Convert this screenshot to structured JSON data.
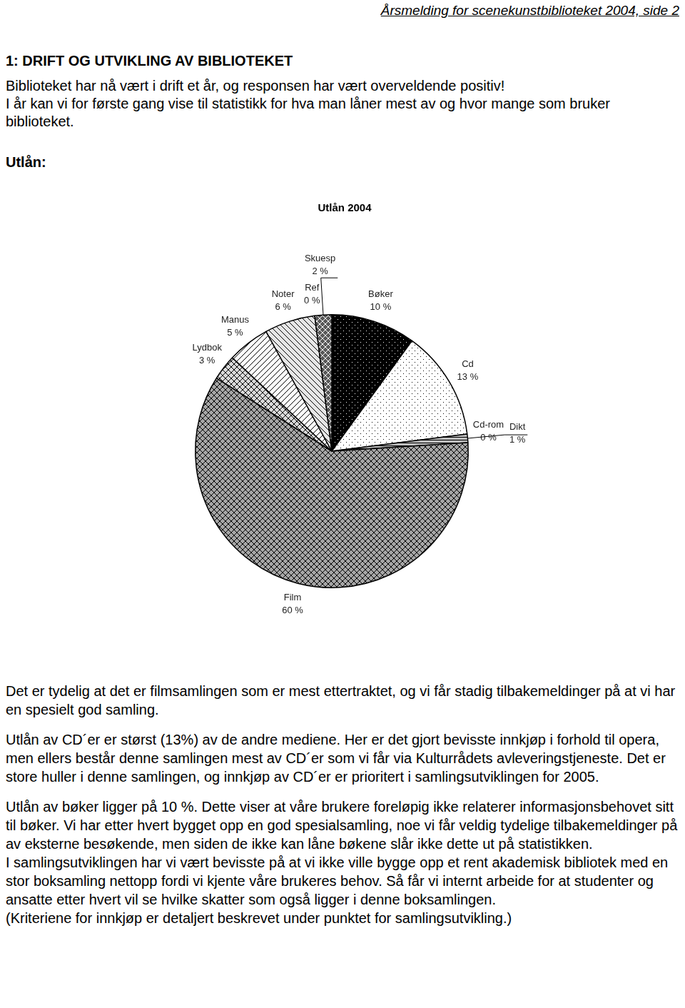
{
  "header": "Årsmelding for scenekunstbiblioteket 2004, side 2",
  "heading": "1: DRIFT OG UTVIKLING AV BIBLIOTEKET",
  "intro": [
    "Biblioteket har nå vært i drift et år, og responsen har vært overveldende positiv!",
    "I år kan vi for første gang vise til statistikk for hva man låner mest av og hvor mange som bruker biblioteket."
  ],
  "subheading": "Utlån:",
  "chart_data": {
    "type": "pie",
    "title": "Utlån 2004",
    "categories": [
      "Bøker",
      "Cd",
      "Cd-rom",
      "Dikt",
      "Film",
      "Lydbok",
      "Manus",
      "Noter",
      "Ref",
      "Skuesp"
    ],
    "values": [
      10,
      13,
      0,
      1,
      60,
      3,
      5,
      6,
      0,
      2
    ],
    "value_labels": [
      "10 %",
      "13 %",
      "0 %",
      "1 %",
      "60 %",
      "3 %",
      "5 %",
      "6 %",
      "0 %",
      "2 %"
    ],
    "colors": [
      "#000000",
      "#ffffff",
      "#808080",
      "#bfbfbf",
      "#a6a6a6",
      "#d9d9d9",
      "#ffffff",
      "#e6e6e6",
      "#404040",
      "#595959"
    ],
    "data_labels": true
  },
  "paragraphs": [
    [
      "Det er tydelig at det er filmsamlingen som er mest ettertraktet, og vi får stadig tilbakemeldinger på at vi har en spesielt god samling."
    ],
    [
      "Utlån av CD´er er størst (13%) av de andre mediene. Her er det gjort bevisste innkjøp i forhold til opera, men ellers består denne samlingen mest av CD´er som vi får via Kulturrådets avleveringstjeneste. Det er store huller i denne samlingen, og innkjøp av CD´er er prioritert i samlingsutviklingen for 2005."
    ],
    [
      "Utlån av bøker ligger på 10 %. Dette viser at våre brukere foreløpig ikke relaterer informasjonsbehovet sitt til bøker. Vi har etter hvert bygget opp en god spesialsamling, noe vi får veldig tydelige tilbakemeldinger på av eksterne besøkende, men siden de ikke kan låne bøkene slår ikke dette ut på statistikken.",
      "I samlingsutviklingen har vi vært bevisste på at vi ikke ville bygge opp et rent akademisk bibliotek med en stor boksamling nettopp fordi vi kjente våre brukeres behov. Så får vi internt arbeide for at studenter og ansatte etter hvert vil se hvilke skatter som også ligger i denne boksamlingen.",
      "(Kriteriene for innkjøp er detaljert beskrevet under punktet for samlingsutvikling.)"
    ]
  ]
}
